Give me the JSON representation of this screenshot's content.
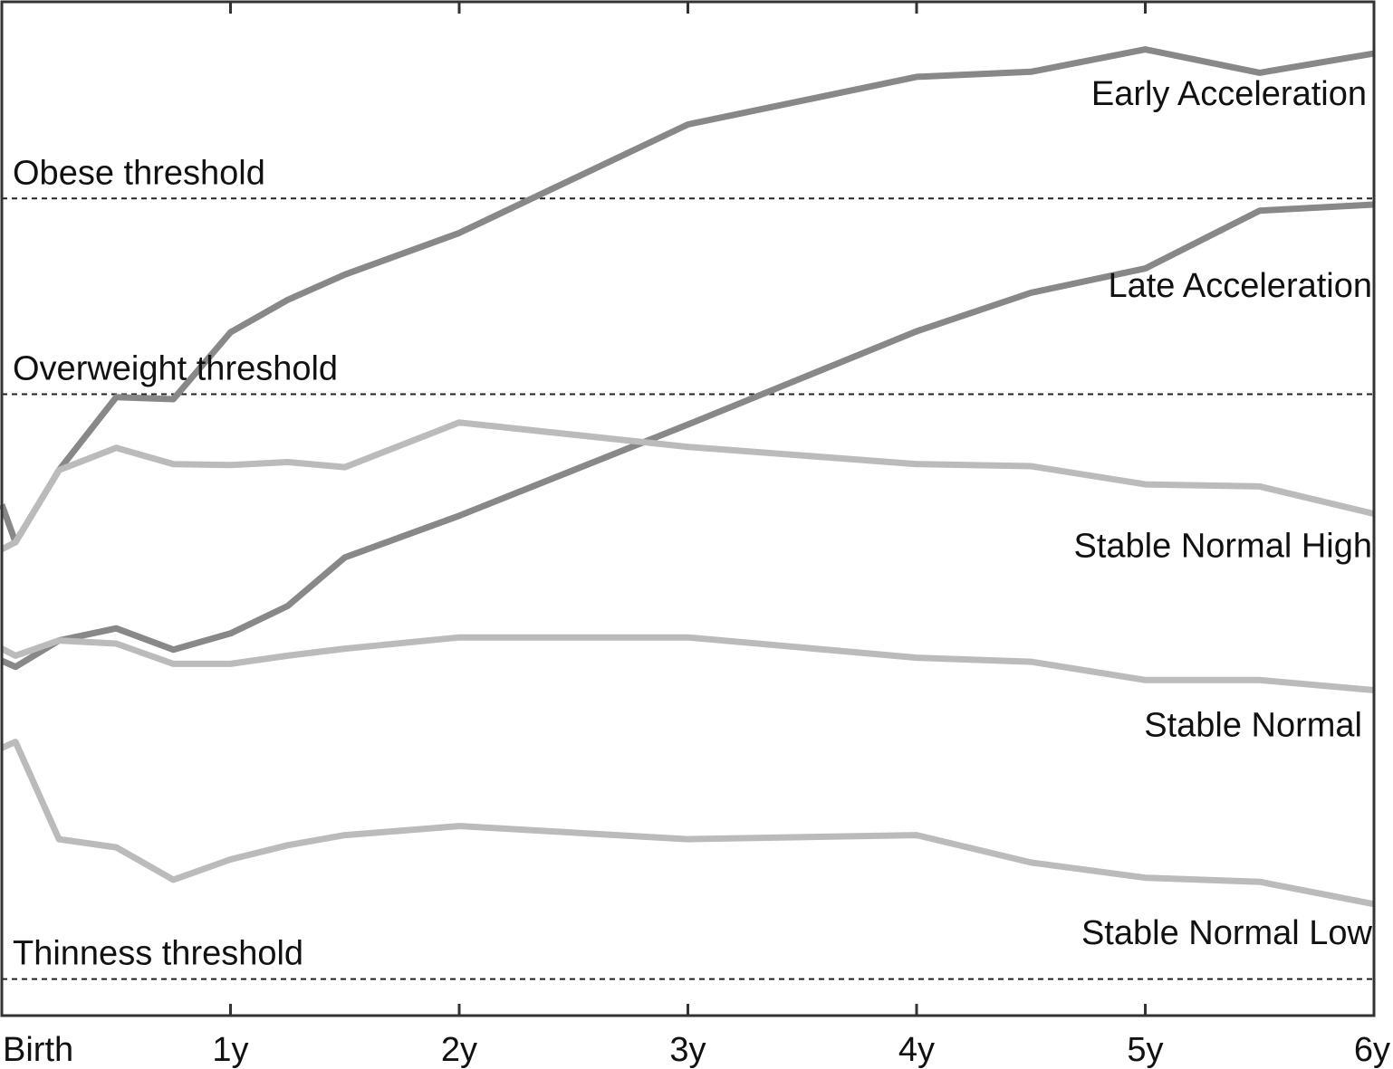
{
  "chart_data": {
    "type": "line",
    "title": "",
    "xlabel": "",
    "ylabel": "",
    "categories": [
      "Birth",
      "1y",
      "2y",
      "3y",
      "4y",
      "5y",
      "6y"
    ],
    "x_unit": "years",
    "xlim": [
      0,
      6
    ],
    "ylim": [
      0,
      100
    ],
    "grid": false,
    "legend": "none (series labelled inline at right)",
    "thresholds": [
      {
        "label": "Obese threshold",
        "value": 80.6
      },
      {
        "label": "Overweight threshold",
        "value": 61.3
      },
      {
        "label": "Thinness threshold",
        "value": 3.6
      }
    ],
    "series": [
      {
        "name": "Early Acceleration",
        "color": "#888888",
        "x": [
          0,
          0.06,
          0.25,
          0.5,
          0.75,
          1,
          1.25,
          1.5,
          2,
          3,
          4,
          4.5,
          5,
          5.5,
          6
        ],
        "y": [
          50.4,
          46.7,
          53.8,
          61.0,
          60.8,
          67.4,
          70.6,
          73.1,
          77.2,
          87.9,
          92.6,
          93.1,
          95.3,
          93.0,
          94.9
        ]
      },
      {
        "name": "Late Acceleration",
        "color": "#888888",
        "x": [
          0,
          0.06,
          0.25,
          0.5,
          0.75,
          1,
          1.25,
          1.5,
          2,
          3,
          4,
          4.5,
          5,
          5.5,
          6
        ],
        "y": [
          35.0,
          34.4,
          37.0,
          38.2,
          36.1,
          37.7,
          40.4,
          45.2,
          49.3,
          58.3,
          67.5,
          71.3,
          73.7,
          79.4,
          80.0
        ]
      },
      {
        "name": "Stable Normal High",
        "color": "#bbbbbb",
        "x": [
          0,
          0.06,
          0.25,
          0.5,
          0.75,
          1,
          1.25,
          1.5,
          2,
          3,
          4,
          4.5,
          5,
          5.5,
          6
        ],
        "y": [
          46.0,
          46.7,
          53.8,
          56.0,
          54.4,
          54.3,
          54.6,
          54.1,
          58.5,
          56.1,
          54.4,
          54.2,
          52.4,
          52.2,
          49.5
        ]
      },
      {
        "name": "Stable Normal",
        "color": "#bbbbbb",
        "x": [
          0,
          0.06,
          0.25,
          0.5,
          0.75,
          1,
          1.25,
          1.5,
          2,
          3,
          4,
          4.5,
          5,
          5.5,
          6
        ],
        "y": [
          36.2,
          35.5,
          37.0,
          36.7,
          34.7,
          34.7,
          35.5,
          36.2,
          37.3,
          37.3,
          35.3,
          34.9,
          33.1,
          33.1,
          32.1
        ]
      },
      {
        "name": "Stable Normal Low",
        "color": "#bbbbbb",
        "x": [
          0,
          0.06,
          0.25,
          0.5,
          0.75,
          1,
          1.25,
          1.5,
          2,
          3,
          4,
          4.5,
          5,
          5.5,
          6
        ],
        "y": [
          26.4,
          27.0,
          17.4,
          16.6,
          13.4,
          15.4,
          16.8,
          17.8,
          18.7,
          17.4,
          17.8,
          15.1,
          13.6,
          13.2,
          11.0
        ]
      }
    ]
  }
}
